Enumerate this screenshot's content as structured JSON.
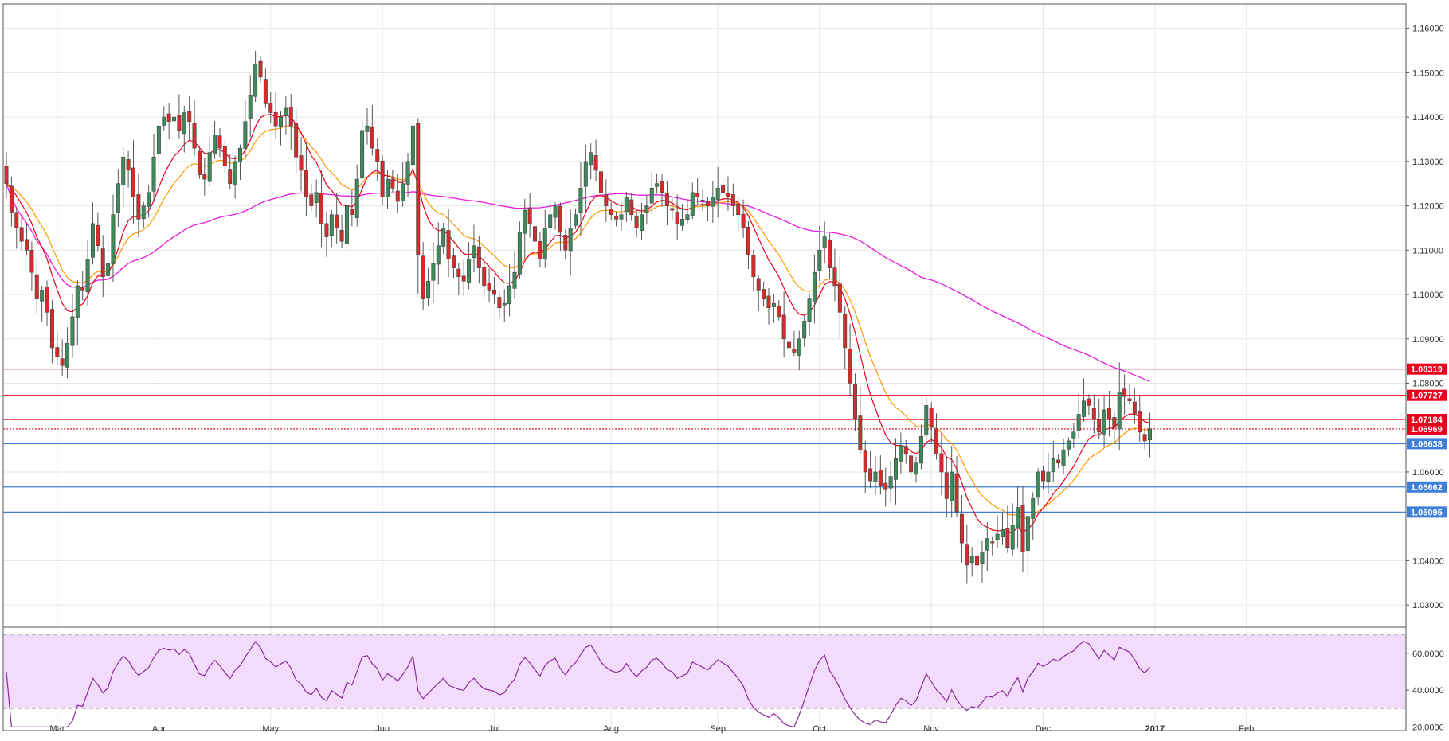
{
  "chart_data": {
    "type": "candlestick",
    "price_axis": {
      "range": [
        1.025,
        1.1655
      ],
      "tick_labels": [
        "1.16000",
        "1.15000",
        "1.14000",
        "1.13000",
        "1.12000",
        "1.11000",
        "1.10000",
        "1.09000",
        "1.08000",
        "1.06000",
        "1.04000",
        "1.03000"
      ],
      "tick_values": [
        1.16,
        1.15,
        1.14,
        1.13,
        1.12,
        1.11,
        1.1,
        1.09,
        1.08,
        1.06,
        1.04,
        1.03
      ]
    },
    "time_axis": {
      "labels": [
        "Mar",
        "Apr",
        "May",
        "Jun",
        "Jul",
        "Aug",
        "Sep",
        "Oct",
        "Nov",
        "Dec",
        "2017",
        "Feb"
      ],
      "bold_labels": [
        "2017"
      ]
    },
    "levels": [
      {
        "value": 1.08319,
        "label": "1.08319",
        "color": "#e8001c",
        "style": "solid"
      },
      {
        "value": 1.07727,
        "label": "1.07727",
        "color": "#e8001c",
        "style": "solid"
      },
      {
        "value": 1.07184,
        "label": "1.07184",
        "color": "#e8001c",
        "style": "solid"
      },
      {
        "value": 1.06969,
        "label": "1.06969",
        "color": "#e8001c",
        "style": "dotted"
      },
      {
        "value": 1.06638,
        "label": "1.06638",
        "color": "#3d7fd9",
        "style": "solid"
      },
      {
        "value": 1.05662,
        "label": "1.05662",
        "color": "#3d7fd9",
        "style": "solid"
      },
      {
        "value": 1.05095,
        "label": "1.05095",
        "color": "#3d7fd9",
        "style": "solid"
      }
    ],
    "closes": [
      1.125,
      1.1185,
      1.115,
      1.112,
      1.11,
      1.105,
      1.099,
      1.101,
      1.096,
      1.088,
      1.086,
      1.084,
      1.089,
      1.095,
      1.102,
      1.101,
      1.108,
      1.116,
      1.111,
      1.104,
      1.107,
      1.118,
      1.125,
      1.131,
      1.128,
      1.122,
      1.117,
      1.12,
      1.123,
      1.131,
      1.138,
      1.14,
      1.139,
      1.14,
      1.137,
      1.141,
      1.139,
      1.133,
      1.127,
      1.126,
      1.132,
      1.136,
      1.133,
      1.129,
      1.125,
      1.13,
      1.133,
      1.139,
      1.145,
      1.152,
      1.149,
      1.143,
      1.141,
      1.138,
      1.14,
      1.142,
      1.138,
      1.131,
      1.128,
      1.122,
      1.12,
      1.123,
      1.116,
      1.113,
      1.118,
      1.115,
      1.112,
      1.12,
      1.118,
      1.126,
      1.137,
      1.138,
      1.133,
      1.13,
      1.122,
      1.126,
      1.124,
      1.121,
      1.125,
      1.13,
      1.138,
      1.109,
      1.099,
      1.103,
      1.107,
      1.111,
      1.115,
      1.108,
      1.106,
      1.104,
      1.103,
      1.108,
      1.111,
      1.106,
      1.102,
      1.101,
      1.1,
      1.097,
      1.098,
      1.102,
      1.105,
      1.114,
      1.119,
      1.116,
      1.112,
      1.108,
      1.115,
      1.118,
      1.12,
      1.114,
      1.11,
      1.115,
      1.118,
      1.124,
      1.13,
      1.132,
      1.128,
      1.123,
      1.12,
      1.118,
      1.117,
      1.118,
      1.122,
      1.118,
      1.115,
      1.118,
      1.12,
      1.124,
      1.125,
      1.123,
      1.12,
      1.119,
      1.116,
      1.117,
      1.118,
      1.123,
      1.122,
      1.121,
      1.12,
      1.122,
      1.124,
      1.123,
      1.122,
      1.12,
      1.118,
      1.115,
      1.109,
      1.104,
      1.101,
      1.099,
      1.097,
      1.098,
      1.095,
      1.09,
      1.088,
      1.087,
      1.09,
      1.094,
      1.099,
      1.105,
      1.11,
      1.113,
      1.106,
      1.102,
      1.096,
      1.088,
      1.08,
      1.072,
      1.065,
      1.06,
      1.058,
      1.06,
      1.057,
      1.056,
      1.059,
      1.063,
      1.066,
      1.064,
      1.06,
      1.062,
      1.068,
      1.075,
      1.07,
      1.064,
      1.06,
      1.054,
      1.06,
      1.051,
      1.044,
      1.039,
      1.041,
      1.039,
      1.042,
      1.045,
      1.044,
      1.046,
      1.047,
      1.043,
      1.048,
      1.052,
      1.042,
      1.05,
      1.054,
      1.06,
      1.058,
      1.06,
      1.063,
      1.062,
      1.065,
      1.067,
      1.069,
      1.073,
      1.076,
      1.075,
      1.072,
      1.069,
      1.074,
      1.072,
      1.07,
      1.078,
      1.077,
      1.076,
      1.073,
      1.069,
      1.067,
      1.0697
    ],
    "ma_fast_color": "#e8001c",
    "ma_slow_color": "#ff9800",
    "ma_long_color": "#e81ce0",
    "up_color": "#3f8a5a",
    "down_color": "#d52b2b",
    "oscillator": {
      "range": [
        18,
        72
      ],
      "tick_labels": [
        "60.0000",
        "40.0000",
        "20.0000"
      ],
      "tick_values": [
        60,
        40,
        20
      ],
      "overbought": 70,
      "oversold": 30,
      "band_color": "#f3dcfb",
      "line_color": "#8c2a9e"
    }
  }
}
